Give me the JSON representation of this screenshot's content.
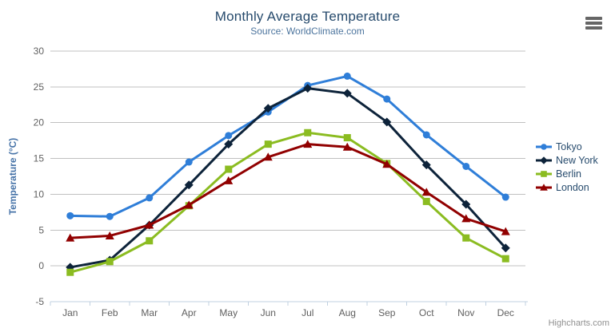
{
  "header": {
    "title": "Monthly Average Temperature",
    "subtitle": "Source: WorldClimate.com"
  },
  "credit": "Highcharts.com",
  "colors": {
    "title": "#274b6d",
    "subtitle": "#4d759e",
    "axis_title": "#4572a7",
    "axis_labels": "#606060",
    "gridline": "#c0c0c0",
    "axis_line": "#c0d0e0",
    "menu_icon": "#666666"
  },
  "chart_data": {
    "type": "line",
    "title": "Monthly Average Temperature",
    "subtitle": "Source: WorldClimate.com",
    "categories": [
      "Jan",
      "Feb",
      "Mar",
      "Apr",
      "May",
      "Jun",
      "Jul",
      "Aug",
      "Sep",
      "Oct",
      "Nov",
      "Dec"
    ],
    "series": [
      {
        "name": "Tokyo",
        "color": "#2f7ed8",
        "marker": "circle",
        "values": [
          7.0,
          6.9,
          9.5,
          14.5,
          18.2,
          21.5,
          25.2,
          26.5,
          23.3,
          18.3,
          13.9,
          9.6
        ]
      },
      {
        "name": "New York",
        "color": "#0d233a",
        "marker": "diamond",
        "values": [
          -0.2,
          0.8,
          5.7,
          11.3,
          17.0,
          22.0,
          24.8,
          24.1,
          20.1,
          14.1,
          8.6,
          2.5
        ]
      },
      {
        "name": "Berlin",
        "color": "#8bbc21",
        "marker": "square",
        "values": [
          -0.9,
          0.6,
          3.5,
          8.4,
          13.5,
          17.0,
          18.6,
          17.9,
          14.3,
          9.0,
          3.9,
          1.0
        ]
      },
      {
        "name": "London",
        "color": "#910000",
        "marker": "triangle",
        "values": [
          3.9,
          4.2,
          5.7,
          8.5,
          11.9,
          15.2,
          17.0,
          16.6,
          14.2,
          10.3,
          6.6,
          4.8
        ]
      }
    ],
    "xlabel": "",
    "ylabel": "Temperature (°C)",
    "ylim": [
      -5,
      30
    ],
    "ytick_step": 5,
    "grid": true,
    "legend_position": "right"
  }
}
